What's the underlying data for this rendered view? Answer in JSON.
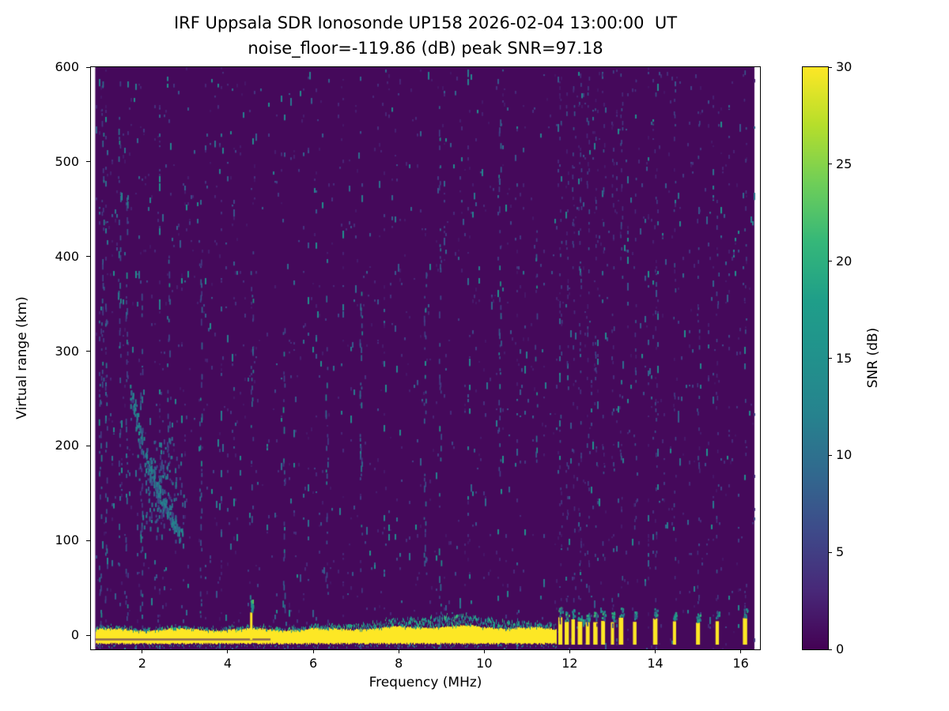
{
  "chart_data": {
    "type": "heatmap",
    "title": "IRF Uppsala SDR Ionosonde UP158 2026-02-04 13:00:00  UT",
    "subtitle": "noise_floor=-119.86 (dB) peak SNR=97.18",
    "xlabel": "Frequency (MHz)",
    "ylabel": "Virtual range (km)",
    "colorbar_label": "SNR (dB)",
    "colormap": "viridis",
    "xlim": [
      0.8,
      16.45
    ],
    "ylim": [
      -15,
      600
    ],
    "data_extent_mhz": [
      0.9,
      16.32
    ],
    "xticks": [
      2,
      4,
      6,
      8,
      10,
      12,
      14,
      16
    ],
    "yticks": [
      0,
      100,
      200,
      300,
      400,
      500,
      600
    ],
    "colorbar_ticks": [
      0,
      5,
      10,
      15,
      20,
      25,
      30
    ],
    "colorbar_range": [
      0,
      30
    ],
    "background_snr_db": 0,
    "features": {
      "ground_pulse": {
        "top_km": 6,
        "bottom_km": -9,
        "snr_db": 30,
        "continuous_max_mhz": 11.68
      },
      "band_fuzz": {
        "center_mhz": 9.2,
        "peak_extra_km": 9,
        "width_mhz": 1.4
      },
      "spike": {
        "freq_mhz": 4.55,
        "top_km": 24
      },
      "discrete_tx_freqs_mhz": [
        11.78,
        11.93,
        12.08,
        12.24,
        12.42,
        12.6,
        12.78,
        13.0,
        13.2,
        13.52,
        14.0,
        14.45,
        15.0,
        15.45,
        16.1
      ],
      "noise_streak_freqs_mhz": [
        1.0,
        1.06,
        1.14,
        1.45,
        1.62,
        1.96,
        2.6,
        3.35,
        4.55,
        5.3,
        6.3,
        7.1,
        8.6,
        8.95,
        10.35,
        11.2
      ],
      "echo_trace": {
        "freqs_mhz": [
          1.7,
          2.0,
          2.3,
          2.6,
          2.9
        ],
        "ranges_km": [
          260,
          200,
          160,
          130,
          108
        ]
      },
      "echo_cluster": {
        "center_mhz": 2.4,
        "center_km": 160,
        "sigma_mhz": 0.45,
        "sigma_km": 45
      }
    }
  }
}
